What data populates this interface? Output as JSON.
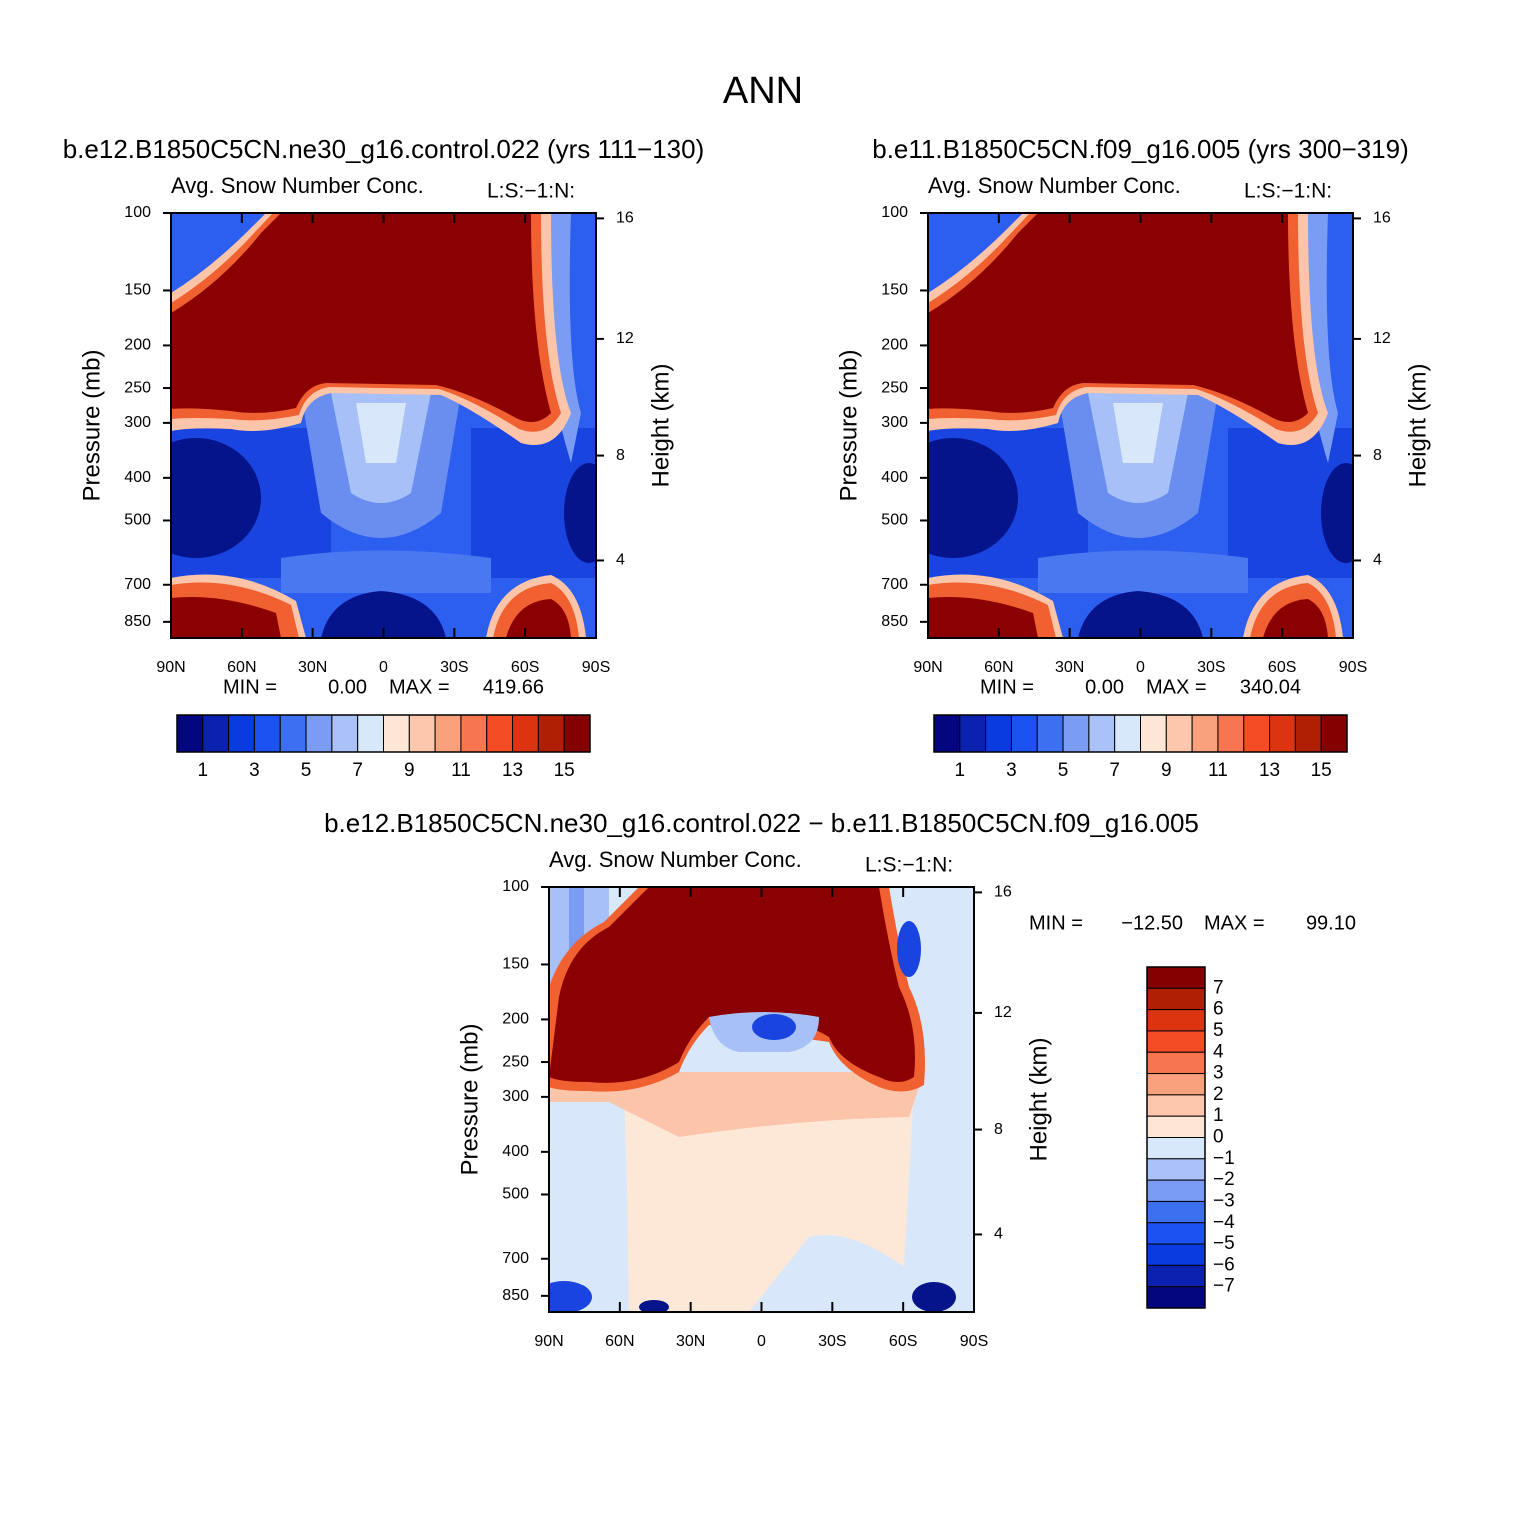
{
  "title": "ANN",
  "panels": [
    {
      "type": "contour",
      "title": "b.e12.B1850C5CN.ne30_g16.control.022 (yrs 111−130)",
      "subtitle": "Avg. Snow Number Conc.",
      "units": "L:S:−1:N:",
      "ylabel": "Pressure (mb)",
      "y2label": "Height (km)",
      "log_y": true,
      "xlim": [
        90,
        -90
      ],
      "xticks": [
        {
          "value": 90,
          "label": "90N"
        },
        {
          "value": 60,
          "label": "60N"
        },
        {
          "value": 30,
          "label": "30N"
        },
        0,
        {
          "value": -30,
          "label": "30S"
        },
        {
          "value": -60,
          "label": "60S"
        },
        {
          "value": -90,
          "label": "90S"
        }
      ],
      "ylim": [
        100,
        925
      ],
      "yticks": [
        100,
        150,
        200,
        250,
        300,
        400,
        500,
        700,
        850
      ],
      "y2ticks": [
        16,
        12,
        8,
        4
      ],
      "stats": {
        "min_label": "MIN =",
        "min": {
          "value": 0,
          "label": "0.00"
        },
        "max_label": "MAX =",
        "max": 419.66
      },
      "colorbar": {
        "orientation": "horizontal",
        "levels": [
          1,
          3,
          5,
          7,
          9,
          11,
          13,
          15
        ],
        "colors": [
          "#03067f",
          "#0b22b0",
          "#0a3be0",
          "#1c52f2",
          "#3d70f0",
          "#7a9cf2",
          "#aac2f8",
          "#d8e8fb",
          "#fde6d6",
          "#fcc7ad",
          "#f9a07c",
          "#f77650",
          "#f44c24",
          "#dc3410",
          "#b01e04",
          "#850000"
        ]
      }
    },
    {
      "type": "contour",
      "title": "b.e11.B1850C5CN.f09_g16.005 (yrs 300−319)",
      "subtitle": "Avg. Snow Number Conc.",
      "units": "L:S:−1:N:",
      "ylabel": "Pressure (mb)",
      "y2label": "Height (km)",
      "log_y": true,
      "xlim": [
        90,
        -90
      ],
      "xticks": [
        {
          "value": 90,
          "label": "90N"
        },
        {
          "value": 60,
          "label": "60N"
        },
        {
          "value": 30,
          "label": "30N"
        },
        0,
        {
          "value": -30,
          "label": "30S"
        },
        {
          "value": -60,
          "label": "60S"
        },
        {
          "value": -90,
          "label": "90S"
        }
      ],
      "ylim": [
        100,
        925
      ],
      "yticks": [
        100,
        150,
        200,
        250,
        300,
        400,
        500,
        700,
        850
      ],
      "y2ticks": [
        16,
        12,
        8,
        4
      ],
      "stats": {
        "min_label": "MIN =",
        "min": {
          "value": 0,
          "label": "0.00"
        },
        "max_label": "MAX =",
        "max": 340.04
      },
      "colorbar": {
        "orientation": "horizontal",
        "levels": [
          1,
          3,
          5,
          7,
          9,
          11,
          13,
          15
        ],
        "colors": [
          "#03067f",
          "#0b22b0",
          "#0a3be0",
          "#1c52f2",
          "#3d70f0",
          "#7a9cf2",
          "#aac2f8",
          "#d8e8fb",
          "#fde6d6",
          "#fcc7ad",
          "#f9a07c",
          "#f77650",
          "#f44c24",
          "#dc3410",
          "#b01e04",
          "#850000"
        ]
      }
    },
    {
      "type": "contour",
      "title": "b.e12.B1850C5CN.ne30_g16.control.022 − b.e11.B1850C5CN.f09_g16.005",
      "subtitle": "Avg. Snow Number Conc.",
      "units": "L:S:−1:N:",
      "ylabel": "Pressure (mb)",
      "y2label": "Height (km)",
      "log_y": true,
      "xlim": [
        90,
        -90
      ],
      "xticks": [
        {
          "value": 90,
          "label": "90N"
        },
        {
          "value": 60,
          "label": "60N"
        },
        {
          "value": 30,
          "label": "30N"
        },
        0,
        {
          "value": -30,
          "label": "30S"
        },
        {
          "value": -60,
          "label": "60S"
        },
        {
          "value": -90,
          "label": "90S"
        }
      ],
      "ylim": [
        100,
        925
      ],
      "yticks": [
        100,
        150,
        200,
        250,
        300,
        400,
        500,
        700,
        850
      ],
      "y2ticks": [
        16,
        12,
        8,
        4
      ],
      "stats": {
        "min_label": "MIN =",
        "min": {
          "value": -12.5,
          "label": "−12.50"
        },
        "max_label": "MAX =",
        "max": {
          "value": 99.1,
          "label": "99.10"
        }
      },
      "colorbar": {
        "orientation": "vertical",
        "levels": [
          7,
          6,
          5,
          4,
          3,
          2,
          1,
          0,
          {
            "value": -1,
            "label": "−1"
          },
          {
            "value": -2,
            "label": "−2"
          },
          {
            "value": -3,
            "label": "−3"
          },
          {
            "value": -4,
            "label": "−4"
          },
          {
            "value": -5,
            "label": "−5"
          },
          {
            "value": -6,
            "label": "−6"
          },
          {
            "value": -7,
            "label": "−7"
          }
        ],
        "colors": [
          "#850000",
          "#b01e04",
          "#dc3410",
          "#f44c24",
          "#f77650",
          "#f9a07c",
          "#fcc7ad",
          "#fde6d6",
          "#d8e8fb",
          "#aac2f8",
          "#7a9cf2",
          "#3d70f0",
          "#1c52f2",
          "#0a3be0",
          "#0b22b0",
          "#03067f"
        ]
      }
    }
  ]
}
